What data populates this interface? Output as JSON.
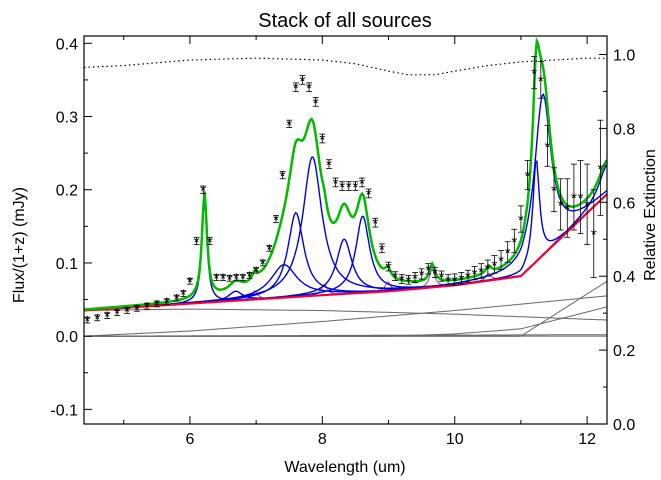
{
  "chart_data": {
    "type": "line",
    "title": "Stack of all sources",
    "xlabel": "Wavelength (um)",
    "ylabel": "Flux/(1+z) (mJy)",
    "y2label": "Relative Extinction",
    "xlim": [
      4.4,
      12.3
    ],
    "ylim": [
      -0.12,
      0.41
    ],
    "y2lim": [
      0.0,
      1.05
    ],
    "x_ticks": [
      6,
      8,
      10,
      12
    ],
    "y_ticks": [
      -0.1,
      0.0,
      0.1,
      0.2,
      0.3,
      0.4
    ],
    "y2_ticks": [
      0.0,
      0.2,
      0.4,
      0.6,
      0.8,
      1.0
    ],
    "grid": false,
    "colors": {
      "data": "#000000",
      "total_fit": "#00bb00",
      "pah_features": "#0000dd",
      "continuum_total": "#ff0022",
      "lines": "#aa33cc",
      "continuum_components": "#666666",
      "extinction": "#000000"
    },
    "data_points": {
      "x": [
        4.45,
        4.6,
        4.75,
        4.9,
        5.05,
        5.2,
        5.35,
        5.5,
        5.65,
        5.8,
        5.9,
        6.0,
        6.1,
        6.2,
        6.3,
        6.4,
        6.5,
        6.6,
        6.7,
        6.8,
        6.9,
        7.0,
        7.1,
        7.2,
        7.3,
        7.4,
        7.5,
        7.6,
        7.7,
        7.8,
        7.9,
        8.0,
        8.1,
        8.2,
        8.3,
        8.4,
        8.5,
        8.6,
        8.7,
        8.8,
        8.9,
        9.0,
        9.1,
        9.2,
        9.3,
        9.4,
        9.5,
        9.6,
        9.7,
        9.8,
        9.9,
        10.0,
        10.1,
        10.2,
        10.3,
        10.4,
        10.5,
        10.6,
        10.7,
        10.8,
        10.9,
        11.0,
        11.1,
        11.2,
        11.3,
        11.4,
        11.5,
        11.6,
        11.7,
        11.8,
        11.9,
        12.0,
        12.1,
        12.2
      ],
      "y": [
        0.022,
        0.025,
        0.028,
        0.032,
        0.035,
        0.038,
        0.041,
        0.044,
        0.047,
        0.052,
        0.058,
        0.075,
        0.13,
        0.2,
        0.13,
        0.08,
        0.08,
        0.079,
        0.08,
        0.08,
        0.083,
        0.09,
        0.1,
        0.12,
        0.16,
        0.22,
        0.29,
        0.34,
        0.35,
        0.34,
        0.32,
        0.27,
        0.235,
        0.21,
        0.205,
        0.205,
        0.205,
        0.21,
        0.195,
        0.155,
        0.12,
        0.095,
        0.082,
        0.078,
        0.077,
        0.08,
        0.085,
        0.092,
        0.087,
        0.082,
        0.077,
        0.077,
        0.079,
        0.082,
        0.086,
        0.089,
        0.093,
        0.098,
        0.104,
        0.115,
        0.13,
        0.16,
        0.22,
        0.36,
        0.35,
        0.26,
        0.2,
        0.18,
        0.175,
        0.19,
        0.19,
        0.18,
        0.14,
        0.23
      ],
      "err": [
        0.004,
        0.004,
        0.004,
        0.004,
        0.004,
        0.004,
        0.004,
        0.004,
        0.004,
        0.004,
        0.004,
        0.004,
        0.005,
        0.005,
        0.005,
        0.004,
        0.004,
        0.004,
        0.004,
        0.004,
        0.004,
        0.004,
        0.004,
        0.004,
        0.005,
        0.005,
        0.005,
        0.006,
        0.006,
        0.006,
        0.006,
        0.006,
        0.006,
        0.006,
        0.006,
        0.006,
        0.006,
        0.006,
        0.006,
        0.006,
        0.006,
        0.006,
        0.006,
        0.006,
        0.006,
        0.007,
        0.007,
        0.007,
        0.007,
        0.007,
        0.007,
        0.008,
        0.008,
        0.008,
        0.009,
        0.01,
        0.011,
        0.012,
        0.013,
        0.014,
        0.016,
        0.018,
        0.02,
        0.022,
        0.025,
        0.028,
        0.03,
        0.035,
        0.04,
        0.045,
        0.05,
        0.055,
        0.06,
        0.065
      ]
    },
    "continuum_components": [
      {
        "x": [
          4.4,
          6,
          8,
          10,
          12.3
        ],
        "y": [
          0.035,
          0.037,
          0.035,
          0.03,
          0.022
        ]
      },
      {
        "x": [
          4.4,
          6,
          8,
          10,
          12.3
        ],
        "y": [
          0.0,
          0.007,
          0.02,
          0.035,
          0.055
        ]
      },
      {
        "x": [
          4.4,
          9,
          10,
          11,
          12.3
        ],
        "y": [
          0.0,
          0.0,
          0.003,
          0.01,
          0.04
        ]
      },
      {
        "x": [
          4.4,
          11,
          12.3
        ],
        "y": [
          0.0,
          0.0,
          0.075
        ]
      },
      {
        "x": [
          4.4,
          12.3
        ],
        "y": [
          0.0,
          0.002
        ]
      }
    ],
    "pah_features": [
      {
        "center": 6.22,
        "height": 0.145,
        "width": 0.09
      },
      {
        "center": 6.69,
        "height": 0.013,
        "width": 0.25
      },
      {
        "center": 7.42,
        "height": 0.045,
        "width": 0.48
      },
      {
        "center": 7.6,
        "height": 0.115,
        "width": 0.29
      },
      {
        "center": 7.85,
        "height": 0.19,
        "width": 0.35
      },
      {
        "center": 8.33,
        "height": 0.075,
        "width": 0.28
      },
      {
        "center": 8.61,
        "height": 0.105,
        "width": 0.25
      },
      {
        "center": 11.23,
        "height": 0.14,
        "width": 0.12
      },
      {
        "center": 11.33,
        "height": 0.22,
        "width": 0.3
      },
      {
        "center": 12.3,
        "height": 0.04,
        "width": 0.3
      }
    ],
    "emission_lines": [
      {
        "center": 6.98,
        "height": 0.012,
        "width": 0.1
      },
      {
        "center": 8.03,
        "height": 0.015,
        "width": 0.1
      },
      {
        "center": 8.99,
        "height": 0.013,
        "width": 0.1
      },
      {
        "center": 9.66,
        "height": 0.025,
        "width": 0.1
      },
      {
        "center": 10.51,
        "height": 0.01,
        "width": 0.1
      }
    ],
    "extinction": {
      "x": [
        4.4,
        5,
        6,
        7,
        8,
        8.5,
        9,
        9.3,
        9.7,
        10,
        10.5,
        11,
        11.5,
        12,
        12.3
      ],
      "y": [
        0.965,
        0.97,
        0.985,
        0.99,
        0.985,
        0.975,
        0.955,
        0.945,
        0.945,
        0.955,
        0.97,
        0.98,
        0.985,
        0.99,
        0.99
      ]
    }
  }
}
